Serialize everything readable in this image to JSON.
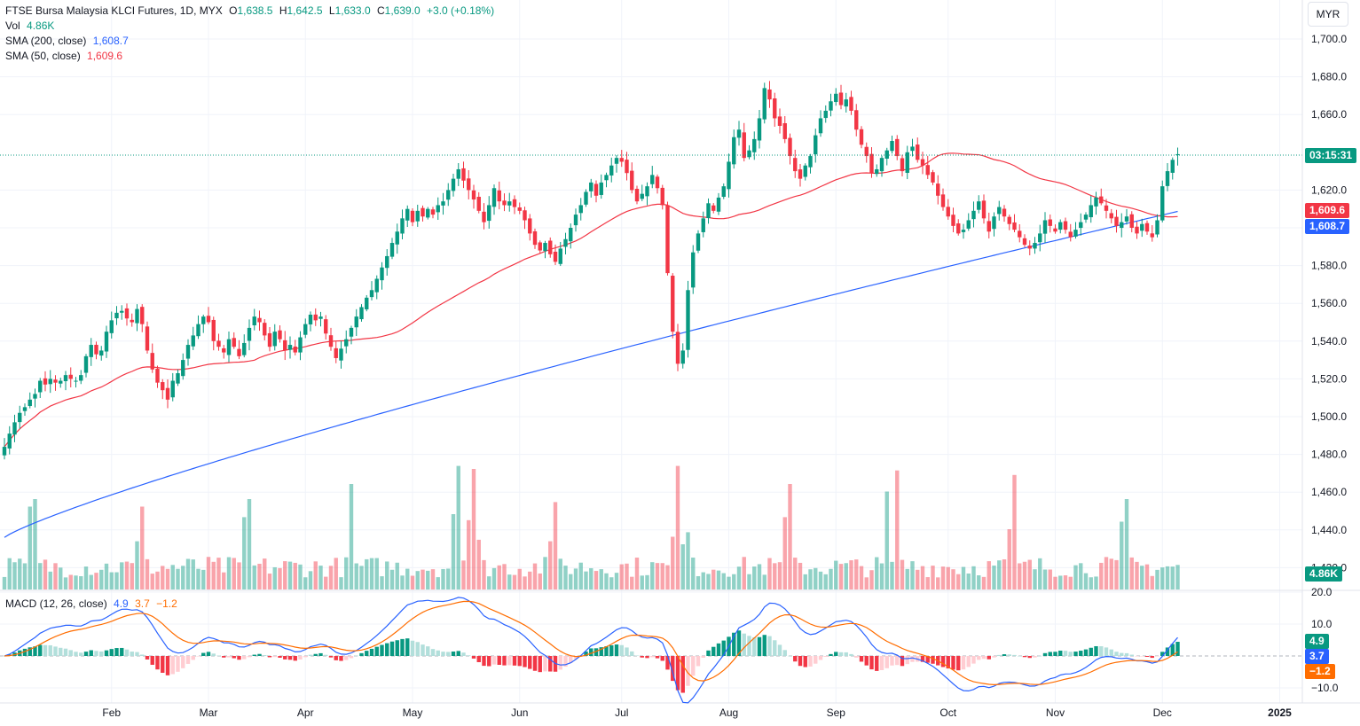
{
  "header": {
    "symbol": "FTSE Bursa Malaysia KLCI Futures, 1D, MYX",
    "o_label": "O",
    "o_value": "1,638.5",
    "h_label": "H",
    "h_value": "1,642.5",
    "l_label": "L",
    "l_value": "1,633.0",
    "c_label": "C",
    "c_value": "1,639.0",
    "change": "+3.0 (+0.18%)",
    "vol_label": "Vol",
    "vol_value": "4.86K",
    "sma200_label": "SMA (200, close)",
    "sma200_value": "1,608.7",
    "sma50_label": "SMA (50, close)",
    "sma50_value": "1,609.6"
  },
  "macd_legend": {
    "label": "MACD (12, 26, close)",
    "macd": "4.9",
    "signal": "3.7",
    "hist": "−1.2"
  },
  "currency": "MYR",
  "tags": {
    "countdown": "03:15:31",
    "sma50": "1,609.6",
    "sma200": "1,608.7",
    "volume": "4.86K",
    "macd": "4.9",
    "signal": "3.7",
    "hist": "−1.2"
  },
  "colors": {
    "up": "#089981",
    "down": "#f23645",
    "sma200": "#2962ff",
    "sma50": "#f23645",
    "signal": "#ff6d00",
    "grid": "#f0f3fa"
  },
  "chart_data": {
    "type": "candlestick",
    "price_axis_ticks": [
      "1,700.0",
      "1,680.0",
      "1,660.0",
      "1,620.0",
      "1,600.0",
      "1,580.0",
      "1,560.0",
      "1,540.0",
      "1,520.0",
      "1,500.0",
      "1,480.0",
      "1,460.0",
      "1,440.0",
      "1,420.0"
    ],
    "price_tick_values": [
      1700,
      1680,
      1660,
      1620,
      1600,
      1580,
      1560,
      1540,
      1520,
      1500,
      1480,
      1460,
      1440,
      1420
    ],
    "macd_axis_ticks": [
      "20.0",
      "10.0",
      "−10.0"
    ],
    "macd_tick_values": [
      20,
      10,
      -10
    ],
    "x_labels": [
      "Feb",
      "Mar",
      "Apr",
      "May",
      "Jun",
      "Jul",
      "Aug",
      "Sep",
      "Oct",
      "Nov",
      "Dec",
      "2025"
    ],
    "x_label_index": [
      21,
      40,
      59,
      80,
      101,
      121,
      142,
      163,
      185,
      206,
      227,
      250
    ],
    "last_close": 1639.0,
    "closes": [
      1484,
      1491,
      1497,
      1502,
      1505,
      1509,
      1512,
      1519,
      1517,
      1520,
      1518,
      1519,
      1522,
      1520,
      1519,
      1522,
      1532,
      1538,
      1533,
      1535,
      1545,
      1551,
      1555,
      1556,
      1552,
      1550,
      1557,
      1549,
      1535,
      1525,
      1518,
      1514,
      1509,
      1519,
      1523,
      1530,
      1538,
      1543,
      1549,
      1553,
      1550,
      1540,
      1537,
      1534,
      1541,
      1537,
      1532,
      1539,
      1547,
      1553,
      1550,
      1543,
      1537,
      1545,
      1541,
      1535,
      1538,
      1534,
      1542,
      1549,
      1554,
      1551,
      1553,
      1544,
      1537,
      1531,
      1536,
      1541,
      1547,
      1553,
      1558,
      1563,
      1567,
      1573,
      1579,
      1585,
      1592,
      1598,
      1605,
      1610,
      1603,
      1609,
      1606,
      1610,
      1607,
      1612,
      1614,
      1620,
      1626,
      1631,
      1625,
      1620,
      1615,
      1609,
      1603,
      1612,
      1621,
      1614,
      1612,
      1614,
      1611,
      1609,
      1604,
      1597,
      1591,
      1588,
      1592,
      1586,
      1582,
      1589,
      1594,
      1600,
      1607,
      1612,
      1619,
      1624,
      1617,
      1624,
      1628,
      1633,
      1637,
      1635,
      1629,
      1620,
      1614,
      1618,
      1622,
      1628,
      1621,
      1612,
      1576,
      1545,
      1528,
      1535,
      1567,
      1587,
      1597,
      1605,
      1613,
      1609,
      1616,
      1622,
      1635,
      1648,
      1652,
      1637,
      1641,
      1647,
      1658,
      1674,
      1668,
      1658,
      1654,
      1647,
      1638,
      1630,
      1626,
      1633,
      1638,
      1649,
      1658,
      1662,
      1667,
      1671,
      1665,
      1668,
      1662,
      1652,
      1644,
      1638,
      1629,
      1631,
      1637,
      1641,
      1646,
      1638,
      1630,
      1640,
      1643,
      1636,
      1633,
      1628,
      1624,
      1617,
      1611,
      1606,
      1601,
      1597,
      1599,
      1604,
      1609,
      1614,
      1605,
      1598,
      1606,
      1611,
      1606,
      1602,
      1599,
      1595,
      1591,
      1589,
      1592,
      1597,
      1604,
      1601,
      1598,
      1603,
      1599,
      1595,
      1599,
      1603,
      1607,
      1612,
      1616,
      1613,
      1609,
      1605,
      1601,
      1603,
      1606,
      1600,
      1597,
      1602,
      1598,
      1595,
      1604,
      1622,
      1630,
      1636,
      1639
    ]
  }
}
